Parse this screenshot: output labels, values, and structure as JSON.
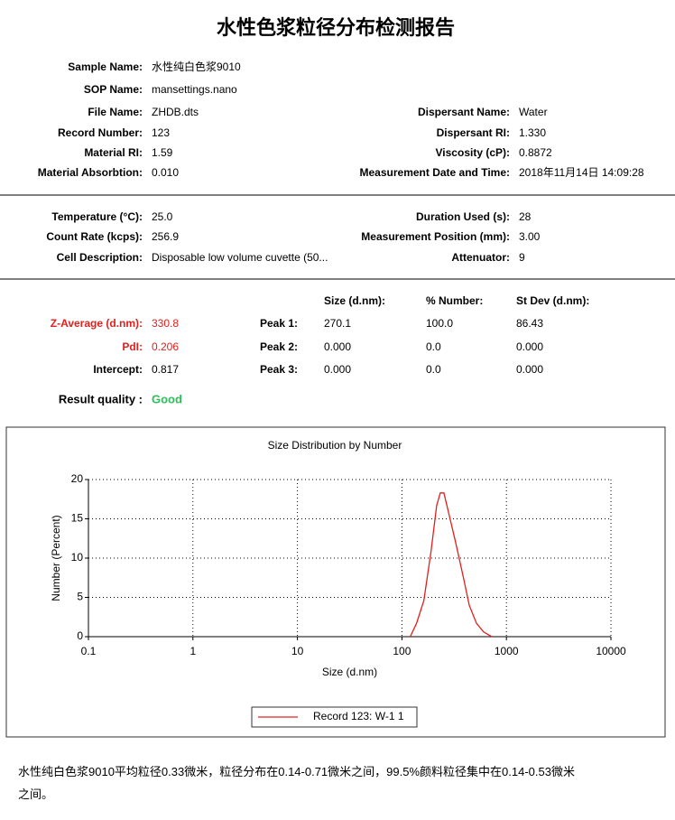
{
  "header": {
    "title": "水性色浆粒径分布检测报告"
  },
  "sample_info": {
    "left": [
      {
        "label": "Sample Name:",
        "value": "水性纯白色浆9010"
      },
      {
        "label": "SOP Name:",
        "value": "mansettings.nano"
      },
      {
        "label": "File Name:",
        "value": "ZHDB.dts"
      },
      {
        "label": "Record Number:",
        "value": "123"
      },
      {
        "label": "Material RI:",
        "value": "1.59"
      },
      {
        "label": "Material Absorbtion:",
        "value": "0.010"
      }
    ],
    "right": [
      {
        "label": "Dispersant Name:",
        "value": "Water"
      },
      {
        "label": "Dispersant RI:",
        "value": "1.330"
      },
      {
        "label": "Viscosity (cP):",
        "value": "0.8872"
      },
      {
        "label": "Measurement Date and Time:",
        "value": "2018年11月14日 14:09:28"
      }
    ]
  },
  "conditions": {
    "left": [
      {
        "label": "Temperature (°C):",
        "value": "25.0"
      },
      {
        "label": "Count Rate (kcps):",
        "value": "256.9"
      },
      {
        "label": "Cell Description:",
        "value": "Disposable low volume cuvette (50..."
      }
    ],
    "right": [
      {
        "label": "Duration Used (s):",
        "value": "28"
      },
      {
        "label": "Measurement Position (mm):",
        "value": "3.00"
      },
      {
        "label": "Attenuator:",
        "value": "9"
      }
    ]
  },
  "results": {
    "columns": [
      "Size (d.nm):",
      "% Number:",
      "St Dev (d.nm):"
    ],
    "summary": [
      {
        "label": "Z-Average (d.nm):",
        "value": "330.8"
      },
      {
        "label": "PdI:",
        "value": "0.206"
      },
      {
        "label": "Intercept:",
        "value": "0.817"
      }
    ],
    "peaks": [
      {
        "label": "Peak 1:",
        "size": "270.1",
        "number": "100.0",
        "stdev": "86.43"
      },
      {
        "label": "Peak 2:",
        "size": "0.000",
        "number": "0.0",
        "stdev": "0.000"
      },
      {
        "label": "Peak 3:",
        "size": "0.000",
        "number": "0.0",
        "stdev": "0.000"
      }
    ],
    "quality_label": "Result quality :",
    "quality": "Good"
  },
  "chart_data": {
    "type": "line",
    "title": "Size Distribution by Number",
    "x_label": "Size (d.nm)",
    "y_label": "Number (Percent)",
    "x_scale": "log",
    "xlim": [
      0.1,
      10000
    ],
    "xticks": [
      0.1,
      1,
      10,
      100,
      1000,
      10000
    ],
    "ylim": [
      0,
      20
    ],
    "yticks": [
      0,
      5,
      10,
      15,
      20
    ],
    "grid": true,
    "legend": "bottom",
    "x": [
      120,
      138,
      162,
      190,
      215,
      233,
      252,
      283,
      325,
      385,
      441,
      517,
      605,
      725
    ],
    "series": [
      {
        "name": "Record 123: W-1 1",
        "color": "#e0201c",
        "values": [
          0,
          1.7,
          4.6,
          10.9,
          16.7,
          18.3,
          18.3,
          15.5,
          12.1,
          7.7,
          4.0,
          1.7,
          0.6,
          0
        ]
      }
    ]
  },
  "conclusion": "水性纯白色浆9010平均粒径0.33微米，粒径分布在0.14-0.71微米之间，99.5%颜料粒径集中在0.14-0.53微米之间。"
}
